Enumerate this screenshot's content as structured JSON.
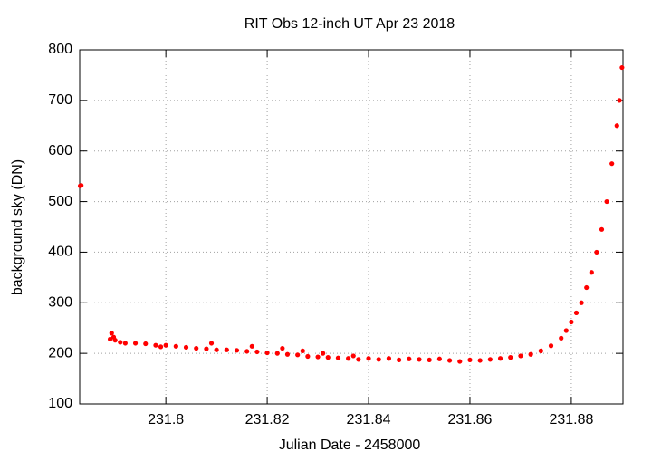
{
  "chart_data": {
    "type": "scatter",
    "title": "RIT Obs 12-inch UT Apr 23 2018",
    "x_label": "Julian Date - 2458000",
    "y_label": "background sky (DN)",
    "color": "#ff0000",
    "grid": true,
    "xlim": [
      231.783,
      231.8902
    ],
    "ylim": [
      100,
      800
    ],
    "xticks": [
      231.8,
      231.82,
      231.84,
      231.86,
      231.88
    ],
    "yticks": [
      100,
      200,
      300,
      400,
      500,
      600,
      700,
      800
    ],
    "x": [
      231.7831,
      231.7833,
      231.789,
      231.7893,
      231.7897,
      231.79,
      231.791,
      231.792,
      231.794,
      231.796,
      231.798,
      231.799,
      231.8,
      231.802,
      231.804,
      231.806,
      231.808,
      231.809,
      231.81,
      231.812,
      231.814,
      231.816,
      231.817,
      231.818,
      231.82,
      231.822,
      231.823,
      231.824,
      231.826,
      231.827,
      231.828,
      231.83,
      231.831,
      231.832,
      231.834,
      231.836,
      231.837,
      231.838,
      231.84,
      231.842,
      231.844,
      231.846,
      231.848,
      231.85,
      231.852,
      231.854,
      231.856,
      231.858,
      231.86,
      231.862,
      231.864,
      231.866,
      231.868,
      231.87,
      231.872,
      231.874,
      231.876,
      231.878,
      231.879,
      231.88,
      231.881,
      231.882,
      231.883,
      231.884,
      231.885,
      231.886,
      231.887,
      231.888,
      231.889,
      231.8895,
      231.89
    ],
    "values": [
      531,
      532,
      228,
      240,
      232,
      226,
      222,
      220,
      220,
      219,
      216,
      213,
      216,
      214,
      212,
      210,
      209,
      220,
      207,
      207,
      206,
      204,
      214,
      203,
      201,
      200,
      210,
      198,
      197,
      205,
      194,
      193,
      200,
      192,
      191,
      190,
      195,
      188,
      190,
      188,
      190,
      187,
      189,
      188,
      187,
      189,
      186,
      184,
      187,
      186,
      188,
      190,
      192,
      195,
      198,
      205,
      215,
      230,
      245,
      262,
      280,
      300,
      330,
      360,
      400,
      445,
      500,
      575,
      650,
      700,
      765
    ]
  }
}
